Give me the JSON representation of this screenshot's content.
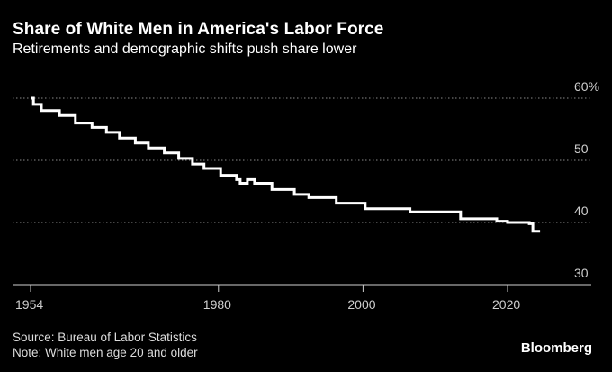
{
  "chart_data": {
    "type": "line",
    "title": "Share of White Men in America's Labor Force",
    "subtitle": "Retirements and demographic shifts push share lower",
    "xlabel": "",
    "ylabel": "",
    "xlim": [
      1954,
      2027
    ],
    "ylim": [
      27,
      61
    ],
    "x_ticks": [
      1954,
      1980,
      2000,
      2020
    ],
    "x_tick_labels": [
      "1954",
      "1980",
      "2000",
      "2020"
    ],
    "y_ticks": [
      30,
      40,
      50,
      60
    ],
    "y_tick_labels": [
      "30",
      "40",
      "50",
      "60%"
    ],
    "grid": "horizontal dotted",
    "series": [
      {
        "name": "Share of white men age 20 and older",
        "color": "#ffffff",
        "x": [
          1954,
          1954.4,
          1955.2,
          1955.5,
          1957.5,
          1958,
          1960,
          1960.2,
          1962,
          1962.5,
          1964,
          1964.5,
          1966,
          1966.3,
          1968,
          1968.5,
          1970,
          1970.3,
          1972,
          1972.5,
          1974,
          1974.5,
          1976,
          1976.4,
          1977.5,
          1978,
          1980,
          1980.3,
          1982,
          1982.5,
          1983,
          1984,
          1985,
          1985.5,
          1987,
          1987.4,
          1988,
          1989,
          1990,
          1990.5,
          1992,
          1992.5,
          1994,
          1996,
          1996.3,
          1998,
          2000,
          2000.3,
          2002,
          2004,
          2006,
          2006.5,
          2008,
          2010,
          2012,
          2013,
          2013.5,
          2016,
          2018,
          2018.5,
          2019,
          2020,
          2021,
          2022,
          2023,
          2023.5,
          2024.5
        ],
        "values": [
          60,
          59,
          59,
          58,
          58,
          57.2,
          57.2,
          56,
          56,
          55.3,
          55.3,
          54.5,
          54.5,
          53.6,
          53.6,
          52.8,
          52.8,
          52,
          52,
          51.2,
          51.2,
          50.3,
          50.3,
          49.4,
          49.4,
          48.7,
          48.7,
          47.6,
          47.6,
          46.9,
          46.3,
          46.9,
          46.3,
          46.3,
          46.3,
          45.3,
          45.3,
          45.3,
          45.3,
          44.5,
          44.5,
          44,
          44,
          44,
          43.1,
          43.1,
          43.1,
          42.2,
          42.2,
          42.2,
          42.2,
          41.7,
          41.7,
          41.7,
          41.7,
          41.7,
          40.6,
          40.6,
          40.6,
          40.2,
          40.2,
          40,
          40,
          40,
          39.8,
          38.6,
          38.6
        ]
      }
    ]
  },
  "footer": {
    "source": "Source: Bureau of Labor Statistics",
    "note": "Note: White men age 20 and older",
    "brand": "Bloomberg"
  }
}
